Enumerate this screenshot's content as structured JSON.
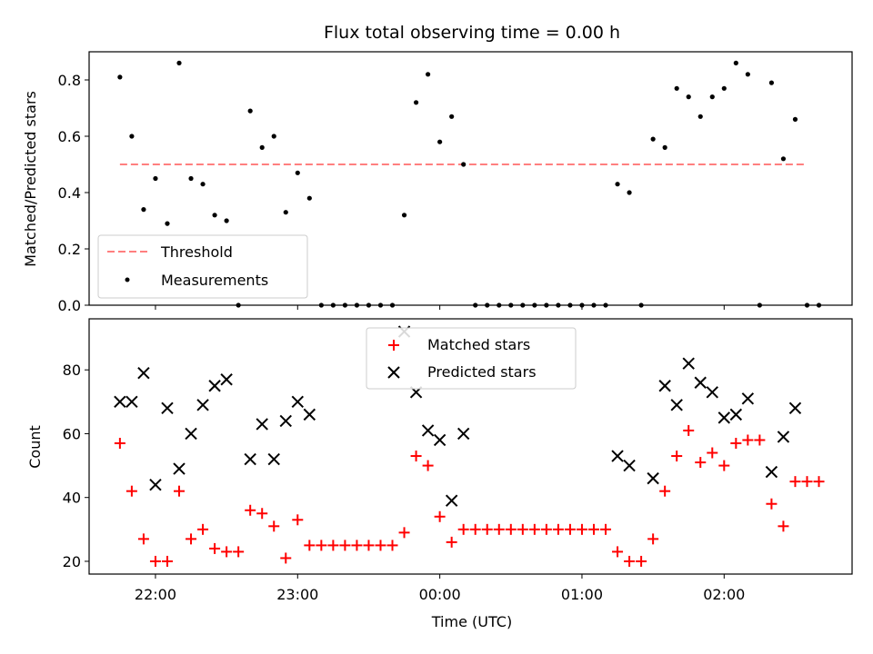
{
  "chart_data": [
    {
      "type": "scatter",
      "title": "Flux total observing time = 0.00 h",
      "ylabel": "Matched/Predicted stars",
      "xlabel": "",
      "ylim": [
        0,
        0.9
      ],
      "xlim": [
        "21:32",
        "02:54"
      ],
      "yticks": [
        "0.0",
        "0.2",
        "0.4",
        "0.6",
        "0.8"
      ],
      "ytick_values": [
        0,
        0.2,
        0.4,
        0.6,
        0.8
      ],
      "xtick_values": [
        "22:00",
        "23:00",
        "00:00",
        "01:00",
        "02:00"
      ],
      "grid": false,
      "legend": {
        "placement": "lower-left",
        "entries": [
          "Threshold",
          "Measurements"
        ]
      },
      "threshold": {
        "name": "Threshold",
        "y": 0.5,
        "x_range": [
          "21:45",
          "02:35"
        ],
        "color": "#ff7f7f",
        "style": "dashed"
      },
      "series": [
        {
          "name": "Measurements",
          "color": "#000000",
          "marker": "dot",
          "x": [
            "21:45",
            "21:50",
            "21:55",
            "22:00",
            "22:05",
            "22:10",
            "22:15",
            "22:20",
            "22:25",
            "22:30",
            "22:35",
            "22:40",
            "22:45",
            "22:50",
            "22:55",
            "23:00",
            "23:05",
            "23:10",
            "23:15",
            "23:20",
            "23:25",
            "23:30",
            "23:35",
            "23:40",
            "23:45",
            "23:50",
            "23:55",
            "00:00",
            "00:05",
            "00:10",
            "00:15",
            "00:20",
            "00:25",
            "00:30",
            "00:35",
            "00:40",
            "00:45",
            "00:50",
            "00:55",
            "01:00",
            "01:05",
            "01:10",
            "01:15",
            "01:20",
            "01:25",
            "01:30",
            "01:35",
            "01:40",
            "01:45",
            "01:50",
            "01:55",
            "02:00",
            "02:05",
            "02:10",
            "02:15",
            "02:20",
            "02:25",
            "02:30",
            "02:35",
            "02:40"
          ],
          "y": [
            0.81,
            0.6,
            0.34,
            0.45,
            0.29,
            0.86,
            0.45,
            0.43,
            0.32,
            0.3,
            0.0,
            0.69,
            0.56,
            0.6,
            0.33,
            0.47,
            0.38,
            0.0,
            0.0,
            0.0,
            0.0,
            0.0,
            0.0,
            0.0,
            0.32,
            0.72,
            0.82,
            0.58,
            0.67,
            0.5,
            0.0,
            0.0,
            0.0,
            0.0,
            0.0,
            0.0,
            0.0,
            0.0,
            0.0,
            0.0,
            0.0,
            0.0,
            0.43,
            0.4,
            0.0,
            0.59,
            0.56,
            0.77,
            0.74,
            0.67,
            0.74,
            0.77,
            0.86,
            0.82,
            0.0,
            0.79,
            0.52,
            0.66,
            0.0,
            0.0
          ]
        }
      ]
    },
    {
      "type": "scatter",
      "title": "",
      "ylabel": "Count",
      "xlabel": "Time (UTC)",
      "ylim": [
        16,
        96
      ],
      "xlim": [
        "21:32",
        "02:54"
      ],
      "yticks": [
        "20",
        "40",
        "60",
        "80"
      ],
      "ytick_values": [
        20,
        40,
        60,
        80
      ],
      "xticks": [
        "22:00",
        "23:00",
        "00:00",
        "01:00",
        "02:00"
      ],
      "xtick_values": [
        "22:00",
        "23:00",
        "00:00",
        "01:00",
        "02:00"
      ],
      "grid": false,
      "legend": {
        "placement": "top-center",
        "entries": [
          "Matched stars",
          "Predicted stars"
        ]
      },
      "series": [
        {
          "name": "Matched stars",
          "color": "#ff0000",
          "marker": "plus",
          "x": [
            "21:45",
            "21:50",
            "21:55",
            "22:00",
            "22:05",
            "22:10",
            "22:15",
            "22:20",
            "22:25",
            "22:30",
            "22:35",
            "22:40",
            "22:45",
            "22:50",
            "22:55",
            "23:00",
            "23:05",
            "23:10",
            "23:15",
            "23:20",
            "23:25",
            "23:30",
            "23:35",
            "23:40",
            "23:45",
            "23:50",
            "23:55",
            "00:00",
            "00:05",
            "00:10",
            "00:15",
            "00:20",
            "00:25",
            "00:30",
            "00:35",
            "00:40",
            "00:45",
            "00:50",
            "00:55",
            "01:00",
            "01:05",
            "01:10",
            "01:15",
            "01:20",
            "01:25",
            "01:30",
            "01:35",
            "01:40",
            "01:45",
            "01:50",
            "01:55",
            "02:00",
            "02:05",
            "02:10",
            "02:15",
            "02:20",
            "02:25",
            "02:30",
            "02:35",
            "02:40"
          ],
          "y": [
            57,
            42,
            27,
            20,
            20,
            42,
            27,
            30,
            24,
            23,
            23,
            36,
            35,
            31,
            21,
            33,
            25,
            25,
            25,
            25,
            25,
            25,
            25,
            25,
            29,
            53,
            50,
            34,
            26,
            30,
            30,
            30,
            30,
            30,
            30,
            30,
            30,
            30,
            30,
            30,
            30,
            30,
            23,
            20,
            20,
            27,
            42,
            53,
            61,
            51,
            54,
            50,
            57,
            58,
            58,
            38,
            31,
            45,
            45,
            45
          ]
        },
        {
          "name": "Predicted stars",
          "color": "#000000",
          "marker": "x",
          "x": [
            "21:45",
            "21:50",
            "21:55",
            "22:00",
            "22:05",
            "22:10",
            "22:15",
            "22:20",
            "22:25",
            "22:30",
            "22:40",
            "22:45",
            "22:50",
            "22:55",
            "23:00",
            "23:05",
            "23:45",
            "23:50",
            "23:55",
            "00:00",
            "00:05",
            "00:10",
            "01:15",
            "01:20",
            "01:30",
            "01:35",
            "01:40",
            "01:45",
            "01:50",
            "01:55",
            "02:00",
            "02:05",
            "02:10",
            "02:20",
            "02:25",
            "02:30"
          ],
          "y": [
            70,
            70,
            79,
            44,
            68,
            49,
            60,
            69,
            75,
            77,
            52,
            63,
            52,
            64,
            70,
            66,
            92,
            73,
            61,
            58,
            39,
            60,
            53,
            50,
            46,
            75,
            69,
            82,
            76,
            73,
            65,
            66,
            71,
            48,
            59,
            68
          ]
        }
      ]
    }
  ]
}
